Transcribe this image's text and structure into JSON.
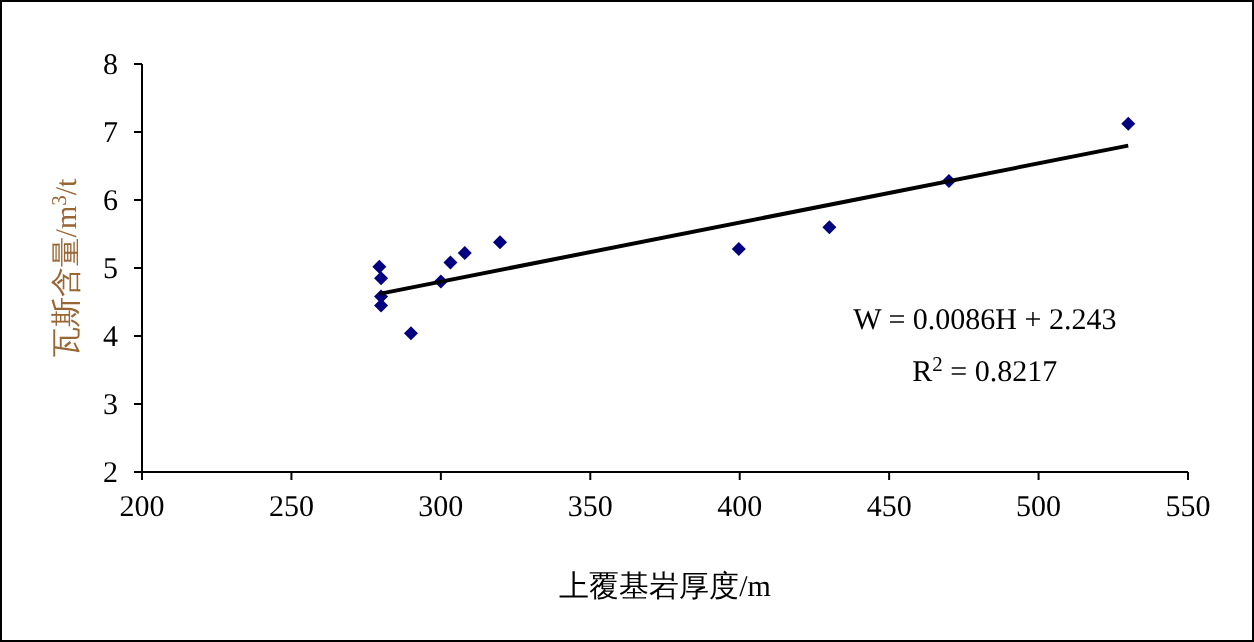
{
  "chart_data": {
    "type": "scatter",
    "xlabel": "上覆基岩厚度/m",
    "ylabel": "瓦斯含量/m$^{3}$/t",
    "xlim": [
      200,
      550
    ],
    "ylim": [
      2,
      8
    ],
    "xticks": [
      200,
      250,
      300,
      350,
      400,
      450,
      500,
      550
    ],
    "yticks": [
      2,
      3,
      4,
      5,
      6,
      7,
      8
    ],
    "grid": false,
    "series": [
      {
        "marker": "diamond",
        "color": "#000080",
        "x": [
          279.4,
          280,
          280,
          280,
          290,
          300,
          303.2,
          308,
          319.8,
          399.7,
          430,
          470,
          530
        ],
        "values": [
          5.02,
          4.85,
          4.58,
          4.45,
          4.04,
          4.8,
          5.08,
          5.22,
          5.38,
          5.28,
          5.6,
          6.28,
          7.12
        ]
      },
      {
        "type": "line",
        "color": "#000000",
        "x": [
          279.4,
          530
        ],
        "values": [
          4.62,
          6.8
        ]
      }
    ],
    "annotations": [
      "W = 0.0086H + 2.243",
      "R$^{2}$ = 0.8217"
    ]
  }
}
